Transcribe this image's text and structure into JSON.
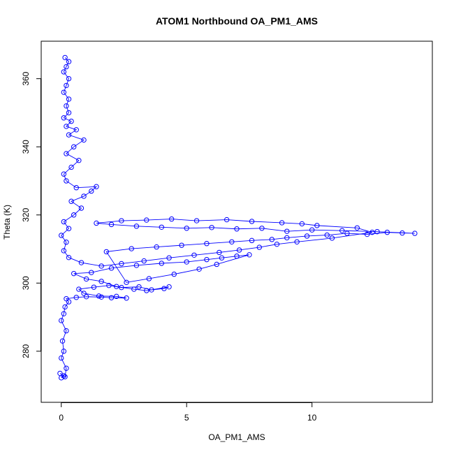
{
  "chart_data": {
    "type": "scatter",
    "title": "ATOM1 Northbound OA_PM1_AMS",
    "xlabel": "OA_PM1_AMS",
    "ylabel": "Theta (K)",
    "xlim": [
      -0.8,
      14.8
    ],
    "ylim": [
      265,
      371
    ],
    "x_ticks": [
      0,
      5,
      10
    ],
    "y_ticks": [
      280,
      300,
      320,
      340,
      360
    ],
    "grid": false,
    "legend": "none",
    "series": [
      {
        "color": "#0000ff",
        "marker": "open-circle",
        "line": true,
        "points": [
          [
            0.0,
            272.2
          ],
          [
            0.1,
            272.8
          ],
          [
            -0.05,
            273.5
          ],
          [
            0.15,
            272.5
          ],
          [
            0.2,
            275
          ],
          [
            0.0,
            278
          ],
          [
            0.1,
            280
          ],
          [
            0.05,
            283
          ],
          [
            0.2,
            286
          ],
          [
            0.0,
            289
          ],
          [
            0.1,
            291
          ],
          [
            0.15,
            293
          ],
          [
            0.3,
            294.5
          ],
          [
            0.2,
            295.4
          ],
          [
            0.6,
            295.8
          ],
          [
            1.0,
            296.0
          ],
          [
            1.6,
            295.9
          ],
          [
            2.0,
            295.7
          ],
          [
            2.6,
            295.6
          ],
          [
            2.2,
            296.1
          ],
          [
            1.5,
            296.2
          ],
          [
            0.9,
            297.0
          ],
          [
            0.7,
            298.2
          ],
          [
            1.3,
            298.8
          ],
          [
            1.9,
            299.3
          ],
          [
            2.4,
            298.7
          ],
          [
            3.1,
            298.9
          ],
          [
            3.6,
            298.0
          ],
          [
            4.1,
            298.4
          ],
          [
            4.3,
            298.9
          ],
          [
            3.4,
            297.8
          ],
          [
            2.9,
            298.2
          ],
          [
            2.2,
            299.0
          ],
          [
            1.6,
            300.5
          ],
          [
            1.0,
            301.2
          ],
          [
            0.5,
            302.8
          ],
          [
            1.2,
            303.1
          ],
          [
            2.0,
            304.4
          ],
          [
            3.0,
            305.2
          ],
          [
            4.0,
            305.8
          ],
          [
            5.0,
            306.2
          ],
          [
            5.8,
            306.9
          ],
          [
            6.4,
            307.4
          ],
          [
            7.0,
            307.9
          ],
          [
            7.5,
            308.3
          ],
          [
            6.2,
            305.5
          ],
          [
            5.5,
            304.1
          ],
          [
            4.5,
            302.6
          ],
          [
            3.5,
            301.3
          ],
          [
            2.6,
            300.2
          ],
          [
            1.8,
            309.2
          ],
          [
            2.8,
            310.1
          ],
          [
            3.8,
            310.6
          ],
          [
            4.8,
            311.1
          ],
          [
            5.8,
            311.6
          ],
          [
            6.8,
            312.1
          ],
          [
            7.6,
            312.5
          ],
          [
            8.4,
            312.8
          ],
          [
            9.0,
            313.3
          ],
          [
            9.8,
            313.8
          ],
          [
            10.6,
            314.1
          ],
          [
            11.4,
            314.6
          ],
          [
            12.2,
            314.3
          ],
          [
            13.0,
            314.9
          ],
          [
            13.6,
            314.7
          ],
          [
            14.1,
            314.6
          ],
          [
            12.6,
            315.1
          ],
          [
            11.2,
            315.4
          ],
          [
            10.0,
            315.6
          ],
          [
            9.0,
            315.2
          ],
          [
            8.0,
            316.1
          ],
          [
            7.0,
            315.9
          ],
          [
            6.0,
            316.3
          ],
          [
            5.0,
            316.1
          ],
          [
            4.0,
            316.4
          ],
          [
            3.0,
            316.7
          ],
          [
            2.0,
            317.2
          ],
          [
            1.4,
            317.6
          ],
          [
            2.4,
            318.3
          ],
          [
            3.4,
            318.5
          ],
          [
            4.4,
            318.8
          ],
          [
            5.4,
            318.3
          ],
          [
            6.6,
            318.6
          ],
          [
            7.6,
            318.1
          ],
          [
            8.8,
            317.7
          ],
          [
            9.6,
            317.4
          ],
          [
            10.2,
            316.9
          ],
          [
            11.8,
            316.2
          ],
          [
            12.4,
            314.9
          ],
          [
            10.8,
            313.2
          ],
          [
            9.4,
            312.1
          ],
          [
            8.6,
            311.4
          ],
          [
            7.9,
            310.5
          ],
          [
            7.1,
            309.7
          ],
          [
            6.3,
            309.0
          ],
          [
            5.3,
            308.2
          ],
          [
            4.3,
            307.4
          ],
          [
            3.3,
            306.5
          ],
          [
            2.4,
            305.7
          ],
          [
            1.6,
            305.0
          ],
          [
            0.8,
            306.0
          ],
          [
            0.3,
            307.5
          ],
          [
            0.1,
            309.5
          ],
          [
            0.2,
            312
          ],
          [
            0.0,
            314
          ],
          [
            0.3,
            316
          ],
          [
            0.1,
            318
          ],
          [
            0.5,
            320
          ],
          [
            0.8,
            322
          ],
          [
            0.4,
            324
          ],
          [
            0.9,
            325.5
          ],
          [
            1.2,
            327
          ],
          [
            1.4,
            328.3
          ],
          [
            0.6,
            328
          ],
          [
            0.2,
            330
          ],
          [
            0.1,
            332
          ],
          [
            0.4,
            334
          ],
          [
            0.7,
            336
          ],
          [
            0.2,
            338
          ],
          [
            0.5,
            340
          ],
          [
            0.9,
            342
          ],
          [
            0.3,
            343.5
          ],
          [
            0.6,
            345
          ],
          [
            0.2,
            346
          ],
          [
            0.4,
            347.5
          ],
          [
            0.1,
            348.5
          ],
          [
            0.3,
            350
          ],
          [
            0.2,
            352
          ],
          [
            0.3,
            354
          ],
          [
            0.1,
            356
          ],
          [
            0.2,
            358
          ],
          [
            0.3,
            360
          ],
          [
            0.1,
            362
          ],
          [
            0.2,
            363.5
          ],
          [
            0.3,
            365
          ],
          [
            0.15,
            366.2
          ]
        ]
      }
    ]
  }
}
